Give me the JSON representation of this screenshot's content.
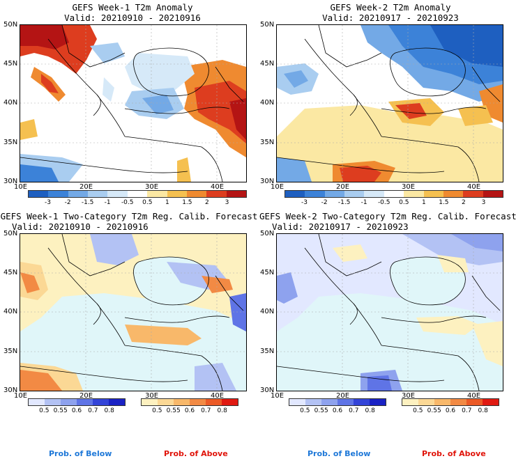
{
  "panels": [
    {
      "title": "GEFS Week-1 T2m Anomaly",
      "valid": "Valid: 20210910 - 20210916"
    },
    {
      "title": "GEFS Week-2 T2m Anomaly",
      "valid": "Valid: 20210917 - 20210923"
    },
    {
      "title": "GEFS Week-1 Two-Category T2m Reg. Calib. Forecast",
      "valid": "Valid: 20210910 - 20210916"
    },
    {
      "title": "GEFS Week-2 Two-Category T2m Reg. Calib. Forecast",
      "valid": "Valid: 20210917 - 20210923"
    }
  ],
  "axes": {
    "lat_labels": [
      "50N",
      "45N",
      "40N",
      "35N",
      "30N"
    ],
    "lon_labels": [
      "10E",
      "20E",
      "30E",
      "40E"
    ]
  },
  "anomaly_colorbar": {
    "labels": [
      "-3",
      "-2",
      "-1.5",
      "-1",
      "-0.5",
      "0.5",
      "1",
      "1.5",
      "2",
      "3"
    ],
    "colors": [
      "#1e5fc0",
      "#3c82d8",
      "#73a9e6",
      "#a9cdf0",
      "#d6e9f8",
      "#ffffff",
      "#fbe8a3",
      "#f5c050",
      "#ef8a30",
      "#dd3d1f",
      "#b41414"
    ]
  },
  "prob_below": {
    "labels": [
      "0.5",
      "0.55",
      "0.6",
      "0.7",
      "0.8"
    ],
    "colors": [
      "#e2e8ff",
      "#b3c2f4",
      "#8ea2ee",
      "#5f74e6",
      "#3344d8",
      "#1a22c4"
    ],
    "caption": "Prob. of Below",
    "caption_color": "#1e78d8"
  },
  "prob_above": {
    "labels": [
      "0.5",
      "0.55",
      "0.6",
      "0.7",
      "0.8"
    ],
    "colors": [
      "#fdf1c0",
      "#fbd895",
      "#f8b86a",
      "#f28a44",
      "#eb5a26",
      "#e01a12"
    ],
    "caption": "Prob. of Above",
    "caption_color": "#e0140a"
  }
}
